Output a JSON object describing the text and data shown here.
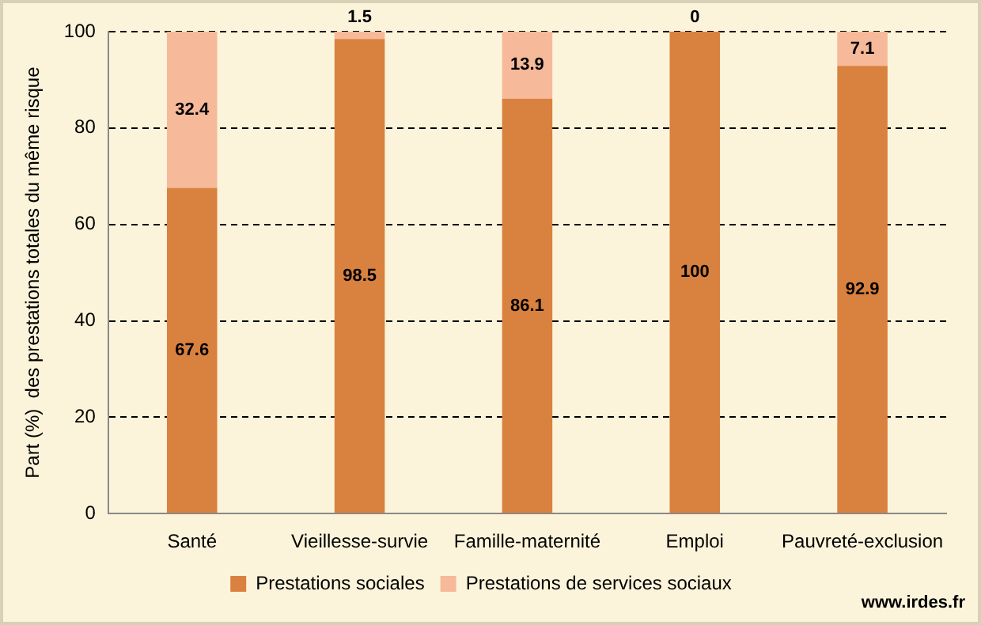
{
  "chart_data": {
    "type": "bar",
    "stacked": true,
    "ylabel": "Part (%)  des prestations totales du même risque",
    "categories": [
      "Santé",
      "Vieillesse-survie",
      "Famille-maternité",
      "Emploi",
      "Pauvreté-exclusion"
    ],
    "series": [
      {
        "name": "Prestations sociales",
        "color": "#d9813f",
        "values": [
          67.6,
          98.5,
          86.1,
          100,
          92.9
        ]
      },
      {
        "name": "Prestations de services sociaux",
        "color": "#f6b99a",
        "values": [
          32.4,
          1.5,
          13.9,
          0,
          7.1
        ]
      }
    ],
    "ylim": [
      0,
      100
    ],
    "yticks": [
      0,
      20,
      40,
      60,
      80,
      100
    ],
    "grid": "y",
    "legend": "bottom",
    "data_labels": true,
    "annotations": [
      "www.irdes.fr"
    ]
  }
}
